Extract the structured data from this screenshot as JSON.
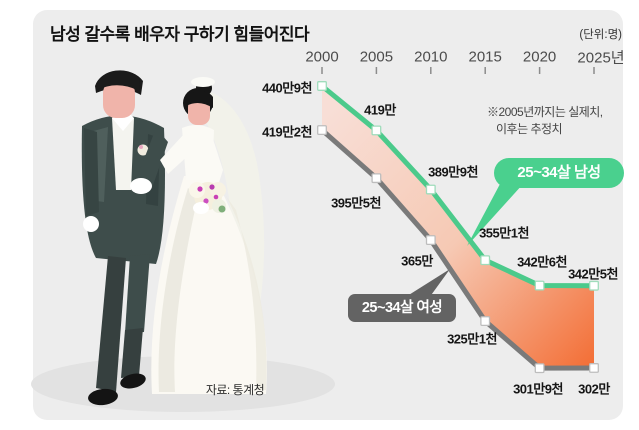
{
  "header": {
    "title": "남성 갈수록 배우자 구하기 힘들어진다",
    "unit_label": "(단위:명)"
  },
  "annotation": {
    "line1": "※2005년까지는 실제치,",
    "line2": "이후는 추정치"
  },
  "legend": {
    "men": "25~34살 남성",
    "women": "25~34살 여성"
  },
  "source": "자료: 통계청",
  "colors": {
    "panel_bg": "#ededed",
    "men_line": "#4bca8b",
    "men_badge": "#4ad08e",
    "women_line": "#7a7a7a",
    "women_badge": "#636363",
    "fill_start": "#f8ded6",
    "fill_mid": "#f6c9b4",
    "fill_end": "#f37038",
    "marker_fill": "#ffffff"
  },
  "chart_data": {
    "type": "area",
    "title": "남성 갈수록 배우자 구하기 힘들어진다",
    "unit": "명",
    "y_unit_note": "values are in 만 (10,000s of persons)",
    "x": [
      2000,
      2005,
      2010,
      2015,
      2020,
      2025
    ],
    "x_tick_labels": [
      "2000",
      "2005",
      "2010",
      "2015",
      "2020",
      "2025년"
    ],
    "series": [
      {
        "name": "25~34살 남성",
        "values": [
          440.9,
          419.0,
          389.9,
          355.1,
          342.6,
          342.5
        ],
        "labels": [
          "440만9천",
          "419만",
          "389만9천",
          "355만1천",
          "342만6천",
          "342만5천"
        ]
      },
      {
        "name": "25~34살 여성",
        "values": [
          419.2,
          395.5,
          365.0,
          325.1,
          301.9,
          302.0
        ],
        "labels": [
          "419만2천",
          "395만5천",
          "365만",
          "325만1천",
          "301만9천",
          "302만"
        ]
      }
    ],
    "note": "※2005년까지는 실제치, 이후는 추정치",
    "legend_position": "inline-callouts",
    "grid": false
  }
}
